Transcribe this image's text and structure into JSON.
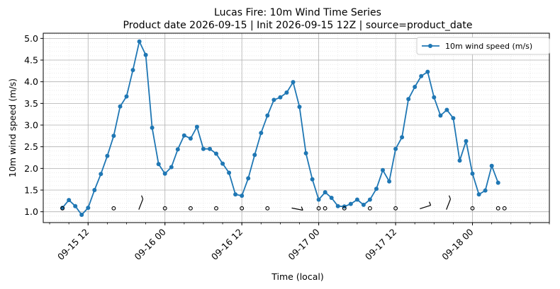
{
  "chart_data": {
    "type": "line",
    "title": "Lucas Fire: 10m Wind Time Series",
    "subtitle": "Product date 2026-09-15 | Init 2026-09-15 12Z | source=product_date",
    "xlabel": "Time (local)",
    "ylabel": "10m wind speed (m/s)",
    "ylim": [
      0.75,
      5.12
    ],
    "xlim": [
      "2026-09-15 05:00",
      "2026-09-18 12:00"
    ],
    "yticks": [
      "1.0",
      "1.5",
      "2.0",
      "2.5",
      "3.0",
      "3.5",
      "4.0",
      "4.5",
      "5.0"
    ],
    "xticks": [
      "09-15 12",
      "09-16 00",
      "09-16 12",
      "09-17 00",
      "09-17 12",
      "09-18 00"
    ],
    "grid": true,
    "legend_position": "top-right",
    "colors": {
      "series": "#1f77b4",
      "barb": "#000000",
      "grid_major": "#b0b0b0",
      "grid_minor": "#dddddd"
    },
    "series": [
      {
        "name": "10m wind speed (m/s)",
        "x": [
          "2026-09-15 08:00",
          "2026-09-15 09:00",
          "2026-09-15 10:00",
          "2026-09-15 11:00",
          "2026-09-15 12:00",
          "2026-09-15 13:00",
          "2026-09-15 14:00",
          "2026-09-15 15:00",
          "2026-09-15 16:00",
          "2026-09-15 17:00",
          "2026-09-15 18:00",
          "2026-09-15 19:00",
          "2026-09-15 20:00",
          "2026-09-15 21:00",
          "2026-09-15 22:00",
          "2026-09-15 23:00",
          "2026-09-16 00:00",
          "2026-09-16 01:00",
          "2026-09-16 02:00",
          "2026-09-16 03:00",
          "2026-09-16 04:00",
          "2026-09-16 05:00",
          "2026-09-16 06:00",
          "2026-09-16 07:00",
          "2026-09-16 08:00",
          "2026-09-16 09:00",
          "2026-09-16 10:00",
          "2026-09-16 11:00",
          "2026-09-16 12:00",
          "2026-09-16 13:00",
          "2026-09-16 14:00",
          "2026-09-16 15:00",
          "2026-09-16 16:00",
          "2026-09-16 17:00",
          "2026-09-16 18:00",
          "2026-09-16 19:00",
          "2026-09-16 20:00",
          "2026-09-16 21:00",
          "2026-09-16 22:00",
          "2026-09-16 23:00",
          "2026-09-17 00:00",
          "2026-09-17 01:00",
          "2026-09-17 02:00",
          "2026-09-17 03:00",
          "2026-09-17 04:00",
          "2026-09-17 05:00",
          "2026-09-17 06:00",
          "2026-09-17 07:00",
          "2026-09-17 08:00",
          "2026-09-17 09:00",
          "2026-09-17 10:00",
          "2026-09-17 11:00",
          "2026-09-17 12:00",
          "2026-09-17 13:00",
          "2026-09-17 14:00",
          "2026-09-17 15:00",
          "2026-09-17 16:00",
          "2026-09-17 17:00",
          "2026-09-17 18:00",
          "2026-09-17 19:00",
          "2026-09-17 20:00",
          "2026-09-17 21:00",
          "2026-09-17 22:00",
          "2026-09-17 23:00",
          "2026-09-18 00:00",
          "2026-09-18 01:00",
          "2026-09-18 02:00",
          "2026-09-18 03:00",
          "2026-09-18 04:00"
        ],
        "y": [
          1.09,
          1.27,
          1.13,
          0.93,
          1.09,
          1.5,
          1.87,
          2.29,
          2.75,
          3.43,
          3.66,
          4.27,
          4.93,
          4.62,
          2.94,
          2.1,
          1.88,
          2.03,
          2.44,
          2.76,
          2.69,
          2.96,
          2.45,
          2.45,
          2.34,
          2.11,
          1.9,
          1.4,
          1.37,
          1.77,
          2.31,
          2.82,
          3.22,
          3.58,
          3.64,
          3.75,
          3.99,
          3.42,
          2.35,
          1.75,
          1.28,
          1.45,
          1.32,
          1.13,
          1.12,
          1.18,
          1.28,
          1.16,
          1.28,
          1.53,
          1.96,
          1.7,
          2.45,
          2.72,
          3.6,
          3.88,
          4.13,
          4.23,
          3.64,
          3.22,
          3.35,
          3.16,
          2.18,
          2.63,
          1.88,
          1.4,
          1.49,
          2.06,
          1.67
        ]
      }
    ],
    "wind_barbs": {
      "y_level": 1.08,
      "x": [
        "2026-09-15 08:00",
        "2026-09-15 16:00",
        "2026-09-15 20:00",
        "2026-09-16 00:00",
        "2026-09-16 04:00",
        "2026-09-16 08:00",
        "2026-09-16 12:00",
        "2026-09-16 16:00",
        "2026-09-16 20:00",
        "2026-09-17 00:00",
        "2026-09-17 04:00",
        "2026-09-17 08:00",
        "2026-09-17 12:00",
        "2026-09-17 16:00",
        "2026-09-17 20:00",
        "2026-09-18 00:00",
        "2026-09-18 04:00"
      ],
      "kind": [
        "calm",
        "calm",
        "barb",
        "calm",
        "calm",
        "calm",
        "calm",
        "calm",
        "barb",
        "calm",
        "calm",
        "calm",
        "calm",
        "barb",
        "barb",
        "calm",
        "calm"
      ]
    },
    "wind_barbs_extra_x": [
      "2026-09-17 00:00",
      "2026-09-18 04:00"
    ]
  }
}
